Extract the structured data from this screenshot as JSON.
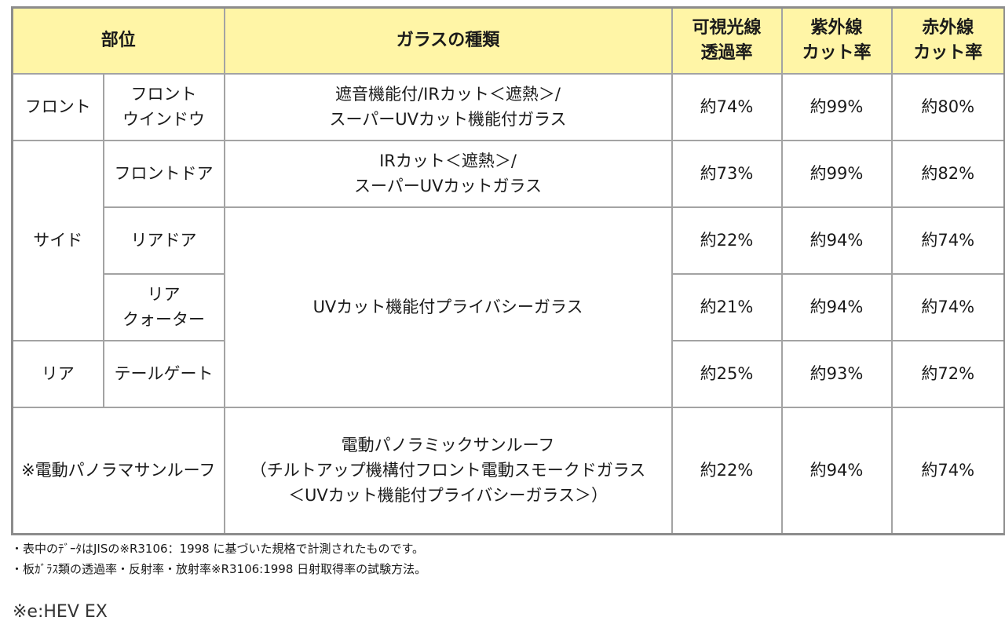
{
  "header": {
    "part": "部位",
    "glass_type": "ガラスの種類",
    "visible": [
      "可視光線",
      "透過率"
    ],
    "uv": [
      "紫外線",
      "カット率"
    ],
    "ir": [
      "赤外線",
      "カット率"
    ]
  },
  "rows": {
    "front": {
      "group": "フロント",
      "sub": [
        "フロント",
        "ウインドウ"
      ],
      "glass": [
        "遮音機能付/IRカット＜遮熱＞/",
        "スーパーUVカット機能付ガラス"
      ],
      "visible": "約74%",
      "uv": "約99%",
      "ir": "約80%"
    },
    "side_front_door": {
      "group": "サイド",
      "sub": "フロントドア",
      "glass": [
        "IRカット＜遮熱＞/",
        "スーパーUVカットガラス"
      ],
      "visible": "約73%",
      "uv": "約99%",
      "ir": "約82%"
    },
    "side_rear_door": {
      "sub": "リアドア",
      "glass": "UVカット機能付プライバシーガラス",
      "visible": "約22%",
      "uv": "約94%",
      "ir": "約74%"
    },
    "side_rear_quarter": {
      "sub": [
        "リア",
        "クォーター"
      ],
      "visible": "約21%",
      "uv": "約94%",
      "ir": "約74%"
    },
    "rear": {
      "group": "リア",
      "sub": "テールゲート",
      "visible": "約25%",
      "uv": "約93%",
      "ir": "約72%"
    },
    "sunroof": {
      "part": "※電動パノラマサンルーフ",
      "glass": [
        "電動パノラミックサンルーフ",
        "（チルトアップ機構付フロント電動スモークドガラス",
        "＜UVカット機能付プライバシーガラス＞）"
      ],
      "visible": "約22%",
      "uv": "約94%",
      "ir": "約74%"
    }
  },
  "notes": [
    "・表中のﾃﾞｰﾀはJISの※R3106：1998 に基づいた規格で計測されたものです。",
    "・板ｶﾞﾗｽ類の透過率・反射率・放射率※R3106:1998 日射取得率の試験方法。"
  ],
  "model_note": "※e:HEV EX"
}
